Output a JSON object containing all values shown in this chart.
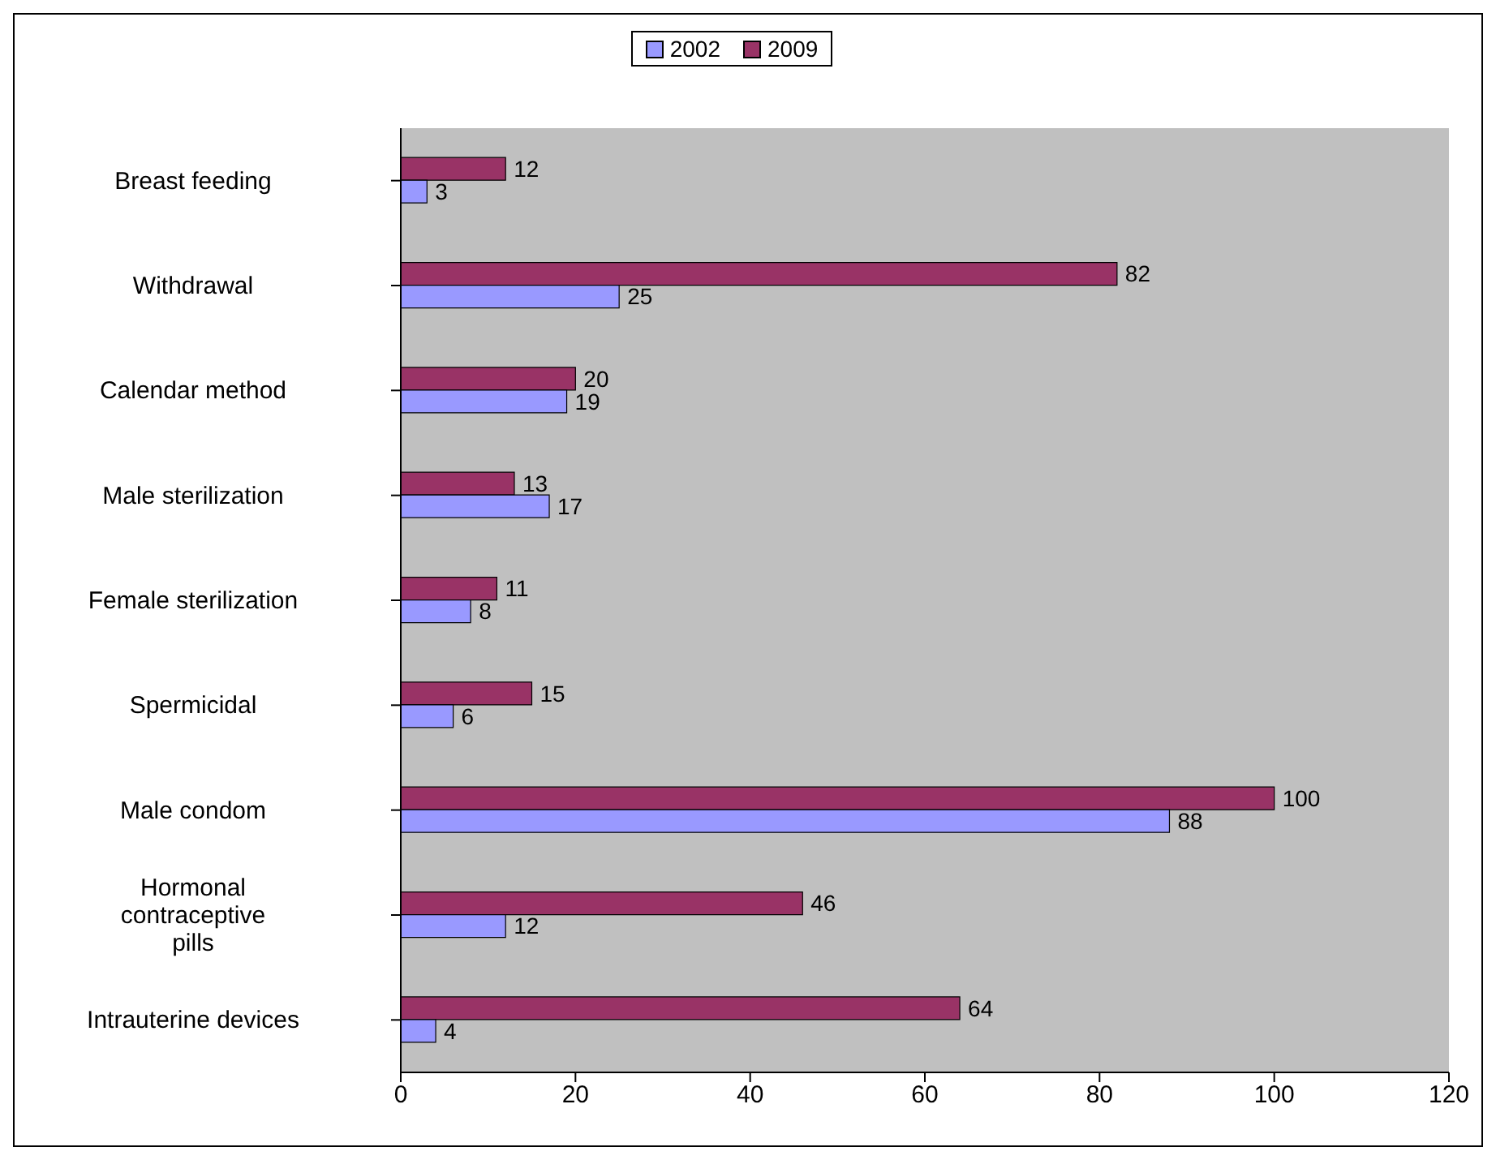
{
  "chart_data": {
    "type": "bar",
    "orientation": "horizontal",
    "categories": [
      "Breast feeding",
      "Withdrawal",
      "Calendar method",
      "Male sterilization",
      "Female sterilization",
      "Spermicidal",
      "Male condom",
      "Hormonal contraceptive pills",
      "Intrauterine devices"
    ],
    "series": [
      {
        "name": "2002",
        "color": "#9999ff",
        "values": [
          3,
          25,
          19,
          17,
          8,
          6,
          88,
          12,
          4
        ]
      },
      {
        "name": "2009",
        "color": "#993366",
        "values": [
          12,
          82,
          20,
          13,
          11,
          15,
          100,
          46,
          64
        ]
      }
    ],
    "xlim": [
      0,
      120
    ],
    "xticks": [
      0,
      20,
      40,
      60,
      80,
      100,
      120
    ],
    "legend": "top",
    "data_labels": true
  }
}
